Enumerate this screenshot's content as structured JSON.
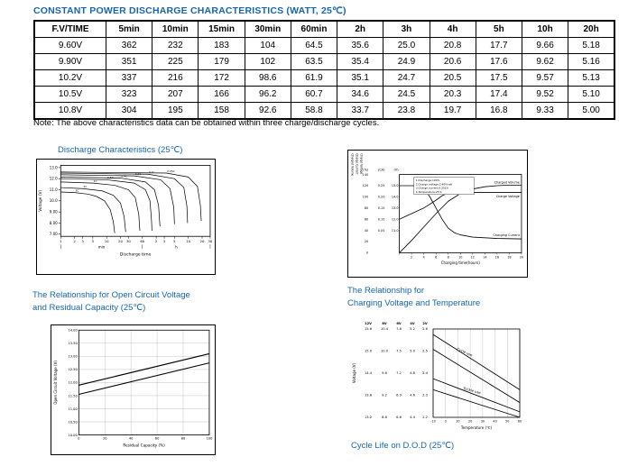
{
  "page": {
    "title": "CONSTANT POWER DISCHARGE CHARACTERISTICS (WATT, 25℃)",
    "note": "Note: The above characteristics data can be obtained within three charge/discharge cycles.",
    "cycle_life_title": "Cycle Life on D.O.D (25℃)"
  },
  "colors": {
    "accent": "#1766ae",
    "line": "#000000"
  },
  "table": {
    "headers": [
      "F.V/TIME",
      "5min",
      "10min",
      "15min",
      "30min",
      "60min",
      "2h",
      "3h",
      "4h",
      "5h",
      "10h",
      "20h"
    ],
    "rows": [
      [
        "9.60V",
        "362",
        "232",
        "183",
        "104",
        "64.5",
        "35.6",
        "25.0",
        "20.8",
        "17.7",
        "9.66",
        "5.18"
      ],
      [
        "9.90V",
        "351",
        "225",
        "179",
        "102",
        "63.5",
        "35.4",
        "24.9",
        "20.6",
        "17.6",
        "9.62",
        "5.16"
      ],
      [
        "10.2V",
        "337",
        "216",
        "172",
        "98.6",
        "61.9",
        "35.1",
        "24.7",
        "20.5",
        "17.5",
        "9.57",
        "5.13"
      ],
      [
        "10.5V",
        "323",
        "207",
        "166",
        "96.2",
        "60.7",
        "34.6",
        "24.5",
        "20.3",
        "17.4",
        "9.52",
        "5.10"
      ],
      [
        "10.8V",
        "304",
        "195",
        "158",
        "92.6",
        "58.8",
        "33.7",
        "23.8",
        "19.7",
        "16.8",
        "9.33",
        "5.00"
      ]
    ]
  },
  "chart_data": [
    {
      "id": "discharge",
      "type": "line",
      "title": "Discharge Characteristics (25℃)",
      "xlabel": "Discharge time",
      "ylabel": "Voltage (V)",
      "x_scale": "log",
      "x_units": [
        "min",
        "h"
      ],
      "ylim": [
        6.8,
        13.2
      ],
      "yticks": [
        "13.0",
        "12.0",
        "11.0",
        "10.0",
        "9.00",
        "8.00",
        "7.00"
      ],
      "xticks_min": [
        "1",
        "2",
        "3",
        "5",
        "10",
        "20",
        "30",
        "60"
      ],
      "xticks_h": [
        "2",
        "3",
        "5",
        "10",
        "20",
        "30"
      ],
      "series": [
        {
          "name": "3C",
          "points": [
            [
              1,
              10.8
            ],
            [
              2,
              10.75
            ],
            [
              4,
              10.6
            ],
            [
              6,
              10.4
            ],
            [
              9,
              10.0
            ],
            [
              12,
              9.2
            ],
            [
              14,
              8.1
            ],
            [
              15,
              7.1
            ]
          ]
        },
        {
          "name": "2C",
          "points": [
            [
              1,
              11.2
            ],
            [
              3,
              11.1
            ],
            [
              8,
              10.9
            ],
            [
              14,
              10.5
            ],
            [
              20,
              9.8
            ],
            [
              24,
              8.6
            ],
            [
              26,
              7.2
            ]
          ]
        },
        {
          "name": "1C",
          "points": [
            [
              1,
              11.7
            ],
            [
              5,
              11.6
            ],
            [
              15,
              11.4
            ],
            [
              30,
              11.0
            ],
            [
              42,
              10.3
            ],
            [
              50,
              8.8
            ],
            [
              53,
              7.3
            ]
          ]
        },
        {
          "name": "0.6C",
          "points": [
            [
              1,
              12.0
            ],
            [
              10,
              11.9
            ],
            [
              40,
              11.6
            ],
            [
              70,
              11.0
            ],
            [
              88,
              10.0
            ],
            [
              95,
              8.2
            ],
            [
              97,
              7.3
            ]
          ]
        },
        {
          "name": "0.4C",
          "points": [
            [
              1,
              12.15
            ],
            [
              20,
              12.05
            ],
            [
              70,
              11.7
            ],
            [
              110,
              11.0
            ],
            [
              135,
              9.6
            ],
            [
              145,
              7.7
            ]
          ]
        },
        {
          "name": "0.2C",
          "points": [
            [
              1,
              12.35
            ],
            [
              40,
              12.25
            ],
            [
              150,
              11.9
            ],
            [
              240,
              11.1
            ],
            [
              290,
              9.4
            ],
            [
              300,
              7.9
            ]
          ]
        },
        {
          "name": "0.1C",
          "points": [
            [
              1,
              12.5
            ],
            [
              80,
              12.4
            ],
            [
              300,
              12.0
            ],
            [
              480,
              11.2
            ],
            [
              560,
              9.5
            ],
            [
              580,
              8.0
            ]
          ]
        },
        {
          "name": "0.05C",
          "points": [
            [
              1,
              12.6
            ],
            [
              200,
              12.5
            ],
            [
              600,
              12.15
            ],
            [
              950,
              11.3
            ],
            [
              1100,
              9.6
            ],
            [
              1150,
              8.2
            ]
          ]
        }
      ]
    },
    {
      "id": "charging",
      "type": "line",
      "xlabel": "Charging time(hours)",
      "conditions": [
        "1.Discharge:100%",
        "2.Charge voltage:2.40V/cell",
        "3.Charge current:0.25CA",
        "4.Temperature:25℃"
      ],
      "axes": {
        "volume": {
          "name": "Charged Volume",
          "unit": "(%)",
          "ticks": [
            140,
            120,
            100,
            80,
            60,
            40,
            20,
            0
          ]
        },
        "current": {
          "name": "Charge Current",
          "unit": "(CA)",
          "ticks": [
            0.25,
            0.2,
            0.15,
            0.1,
            0.05
          ]
        },
        "voltage": {
          "name": "Charge Voltage",
          "unit": "(V)",
          "ticks": [
            15.0,
            14.0,
            13.0,
            12.0,
            11.0
          ]
        }
      },
      "xticks": [
        0,
        2,
        4,
        6,
        8,
        10,
        12,
        14,
        16,
        18,
        20
      ],
      "series": [
        {
          "name": "Charged Volume",
          "axis": "volume",
          "points": [
            [
              0,
              0
            ],
            [
              2,
              22
            ],
            [
              4,
              46
            ],
            [
              6,
              70
            ],
            [
              8,
              92
            ],
            [
              10,
              106
            ],
            [
              12,
              114
            ],
            [
              14,
              118
            ],
            [
              16,
              120
            ],
            [
              18,
              121
            ],
            [
              20,
              121
            ]
          ]
        },
        {
          "name": "Charge Voltage",
          "axis": "voltage",
          "points": [
            [
              0,
              12.0
            ],
            [
              2,
              12.5
            ],
            [
              4,
              13.0
            ],
            [
              6,
              13.7
            ],
            [
              7,
              14.1
            ],
            [
              8,
              14.35
            ],
            [
              9,
              14.4
            ],
            [
              20,
              14.4
            ]
          ]
        },
        {
          "name": "Charging Current",
          "axis": "current",
          "points": [
            [
              0,
              0.25
            ],
            [
              3,
              0.25
            ],
            [
              4,
              0.24
            ],
            [
              5,
              0.2
            ],
            [
              6,
              0.15
            ],
            [
              7,
              0.1
            ],
            [
              8,
              0.06
            ],
            [
              9,
              0.04
            ],
            [
              10,
              0.03
            ],
            [
              12,
              0.02
            ],
            [
              16,
              0.014
            ],
            [
              20,
              0.012
            ]
          ]
        }
      ]
    },
    {
      "id": "ocv",
      "type": "line",
      "title": [
        "The Relationship for Open Circuit Voltage",
        "and Residual Capacity (25℃)"
      ],
      "xlabel": "Residual Capacity (%)",
      "ylabel": "Open Circuit Voltage (V)",
      "ylim": [
        10.0,
        14.0
      ],
      "grid": true,
      "yticks": [
        "14.00",
        "13.50",
        "13.00",
        "12.50",
        "12.00",
        "11.50",
        "11.00",
        "10.50",
        "10.00"
      ],
      "xticks": [
        0,
        20,
        40,
        60,
        80,
        100
      ],
      "series": [
        {
          "name": "upper",
          "points": [
            [
              0,
              11.9
            ],
            [
              100,
              13.1
            ]
          ]
        },
        {
          "name": "lower",
          "points": [
            [
              0,
              11.55
            ],
            [
              100,
              12.75
            ]
          ]
        }
      ]
    },
    {
      "id": "temp",
      "type": "line",
      "title": [
        "The Relationship for",
        "Charging Voltage and Temperature"
      ],
      "xlabel": "Temperature (℃)",
      "ylabel": "Voltage (V)",
      "xticks": [
        -10,
        0,
        10,
        20,
        30,
        40,
        50,
        60
      ],
      "scales": {
        "headers": [
          "12V",
          "8V",
          "6V",
          "4V",
          "2V"
        ],
        "rows": [
          [
            "15.6",
            "10.4",
            "7.8",
            "5.2",
            "2.6"
          ],
          [
            "15.0",
            "10.0",
            "7.5",
            "5.0",
            "2.5"
          ],
          [
            "14.4",
            "9.6",
            "7.2",
            "4.8",
            "2.4"
          ],
          [
            "13.8",
            "9.2",
            "6.9",
            "4.6",
            "2.3"
          ],
          [
            "13.2",
            "8.8",
            "6.6",
            "4.4",
            "2.2"
          ]
        ]
      },
      "ylim_12v": [
        13.2,
        15.6
      ],
      "bands": [
        {
          "name": "Cycle use",
          "upper": [
            [
              -10,
              15.45
            ],
            [
              60,
              13.95
            ]
          ],
          "lower": [
            [
              -10,
              15.05
            ],
            [
              60,
              13.6
            ]
          ]
        },
        {
          "name": "Trickle use",
          "upper": [
            [
              -10,
              14.25
            ],
            [
              60,
              13.35
            ]
          ],
          "lower": [
            [
              -10,
              13.95
            ],
            [
              60,
              13.2
            ]
          ]
        }
      ]
    }
  ]
}
